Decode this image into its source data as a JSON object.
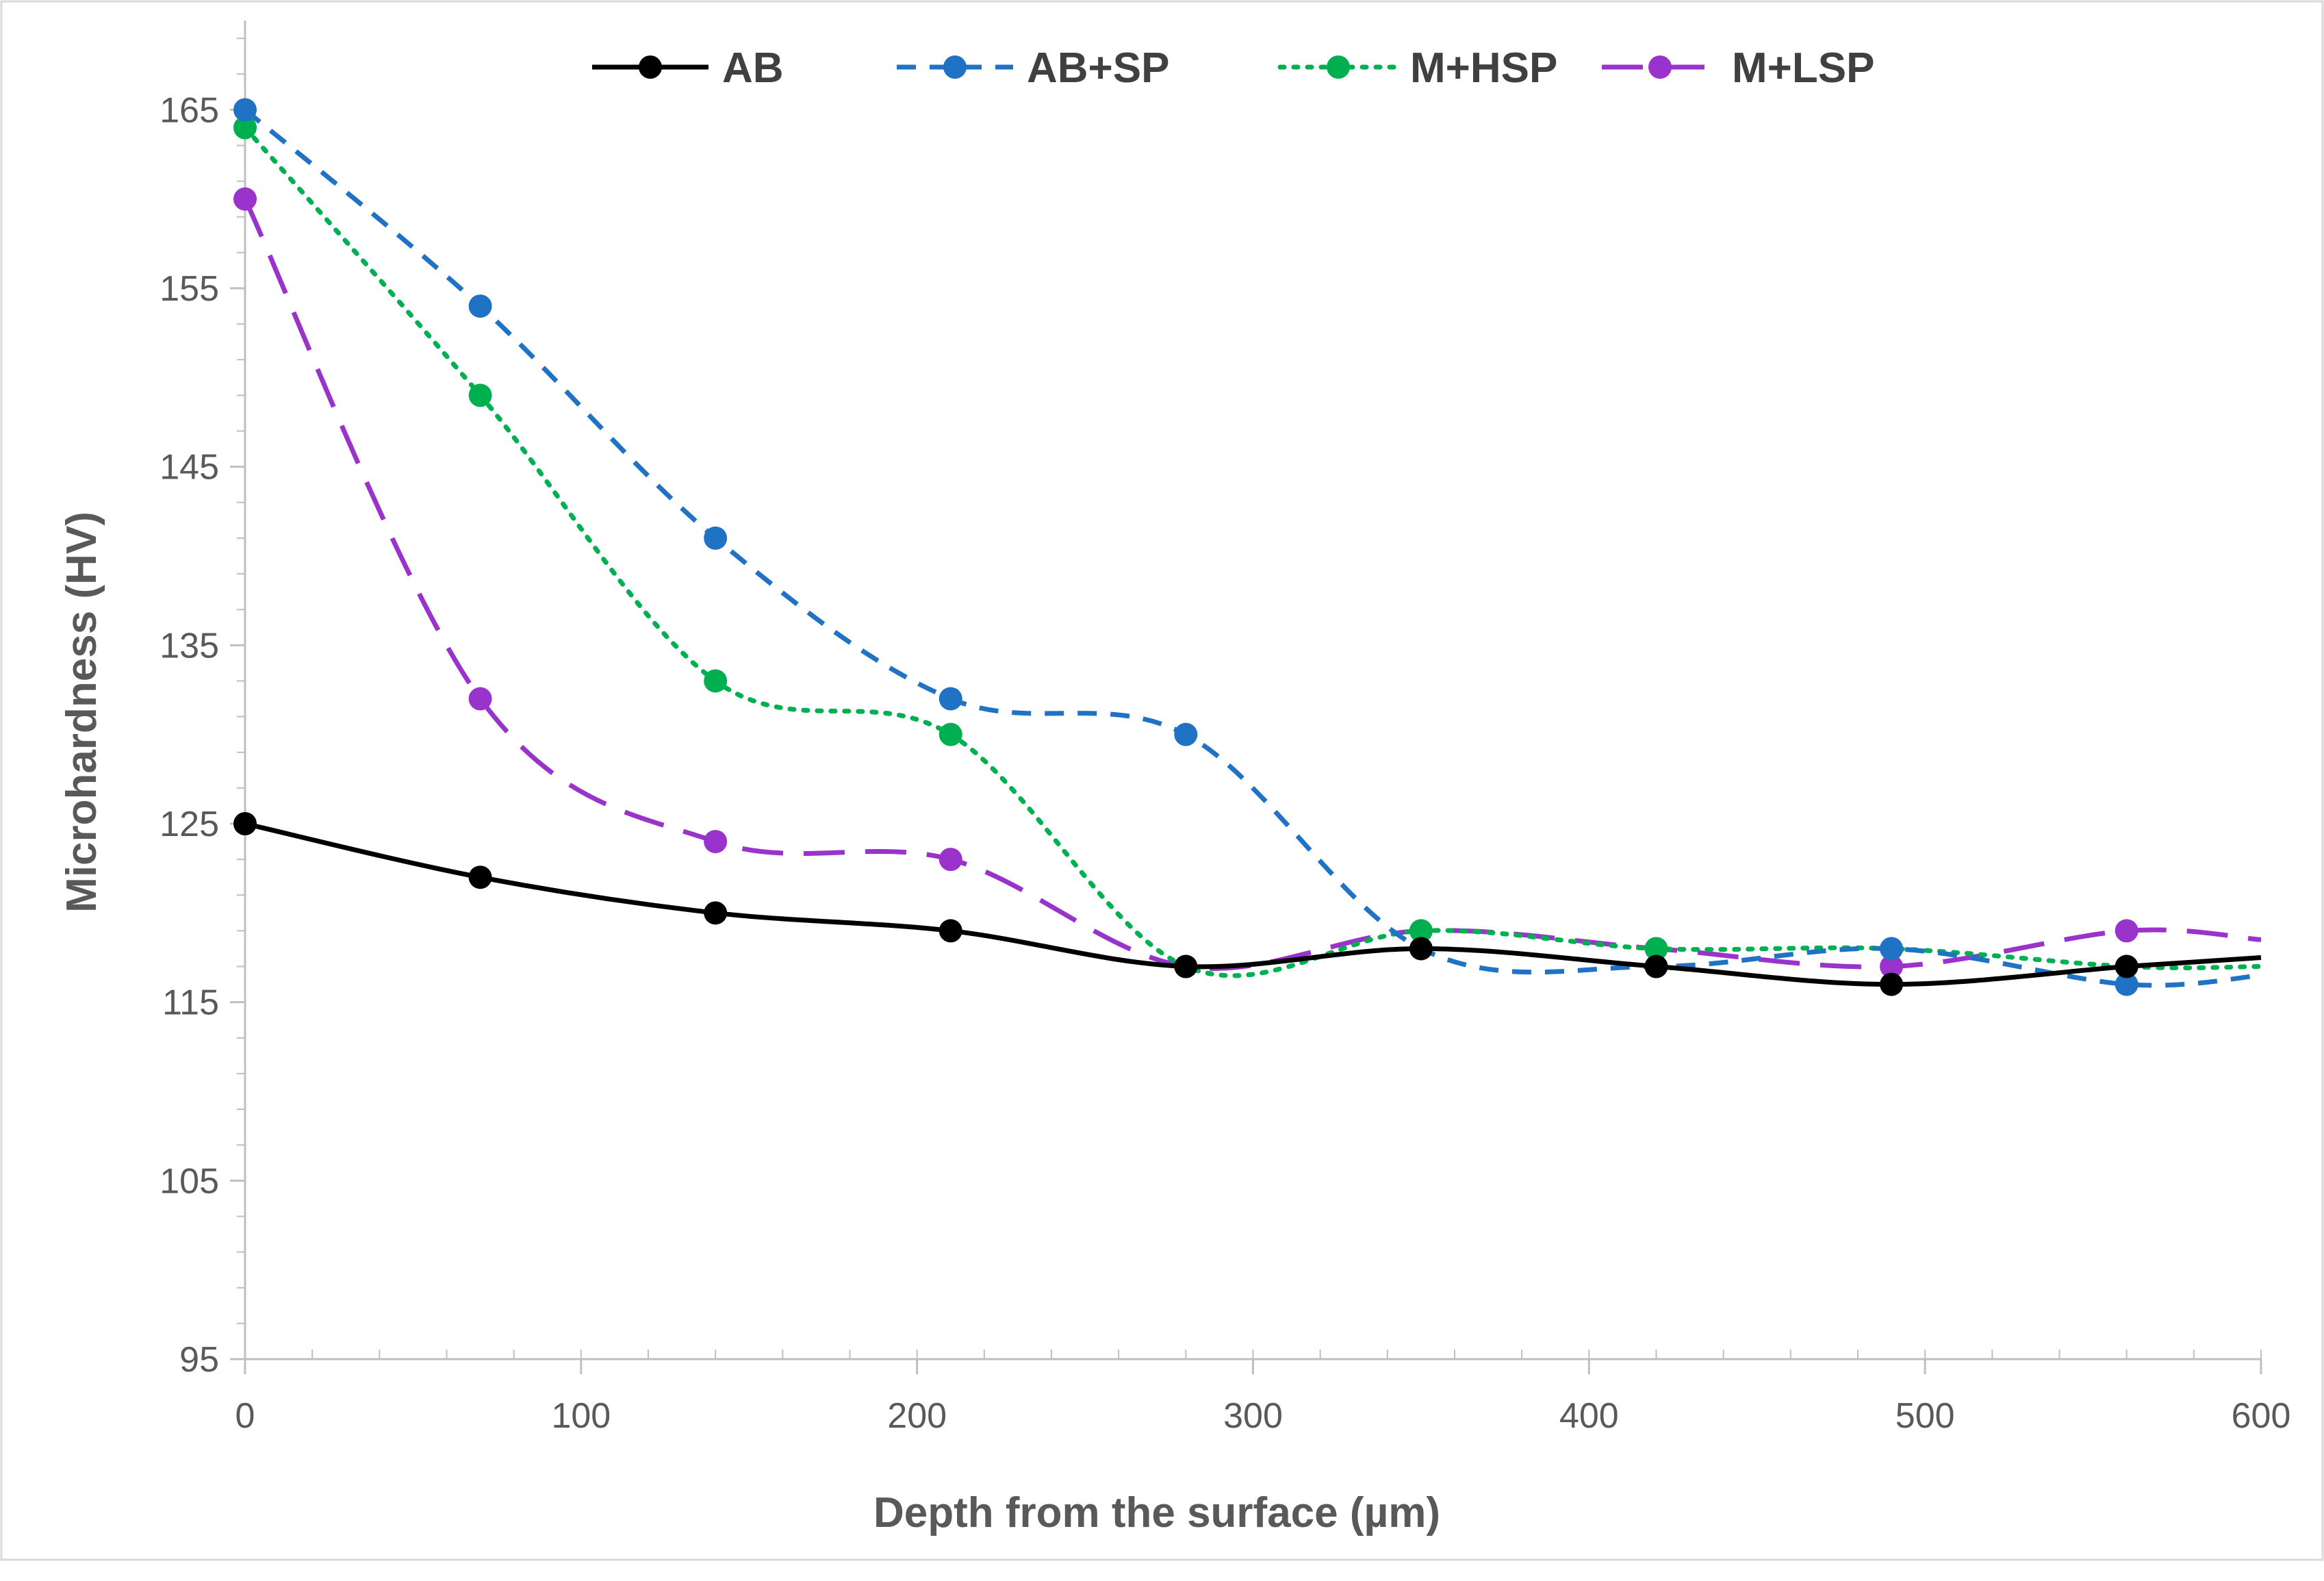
{
  "chart_data": {
    "type": "line",
    "title": "",
    "xlabel": "Depth from the surface (µm)",
    "ylabel": "Microhardness (HV)",
    "xlim": [
      0,
      600
    ],
    "ylim": [
      95,
      170
    ],
    "x_ticks": [
      0,
      100,
      200,
      300,
      400,
      500,
      600
    ],
    "y_ticks": [
      95,
      105,
      115,
      125,
      135,
      145,
      155,
      165
    ],
    "grid": false,
    "legend_position": "top",
    "x": [
      0,
      70,
      140,
      210,
      280,
      350,
      420,
      490,
      560
    ],
    "series": [
      {
        "name": "AB",
        "color": "#000000",
        "line_style": "solid",
        "values": [
          125,
          122,
          120,
          119,
          117,
          118,
          117,
          116,
          117
        ],
        "end_value": 117.5
      },
      {
        "name": "AB+SP",
        "color": "#1F72C4",
        "line_style": "dashed",
        "values": [
          165,
          154,
          141,
          132,
          130,
          118,
          117,
          118,
          116
        ],
        "end_value": 116.5
      },
      {
        "name": "M+HSP",
        "color": "#00B050",
        "line_style": "dotted",
        "values": [
          164,
          149,
          133,
          130,
          117,
          119,
          118,
          118,
          117
        ],
        "end_value": 117
      },
      {
        "name": "M+LSP",
        "color": "#9933CC",
        "line_style": "long-dash",
        "values": [
          160,
          132,
          124,
          123,
          117,
          119,
          118,
          117,
          119
        ],
        "end_value": 118.5
      }
    ]
  }
}
